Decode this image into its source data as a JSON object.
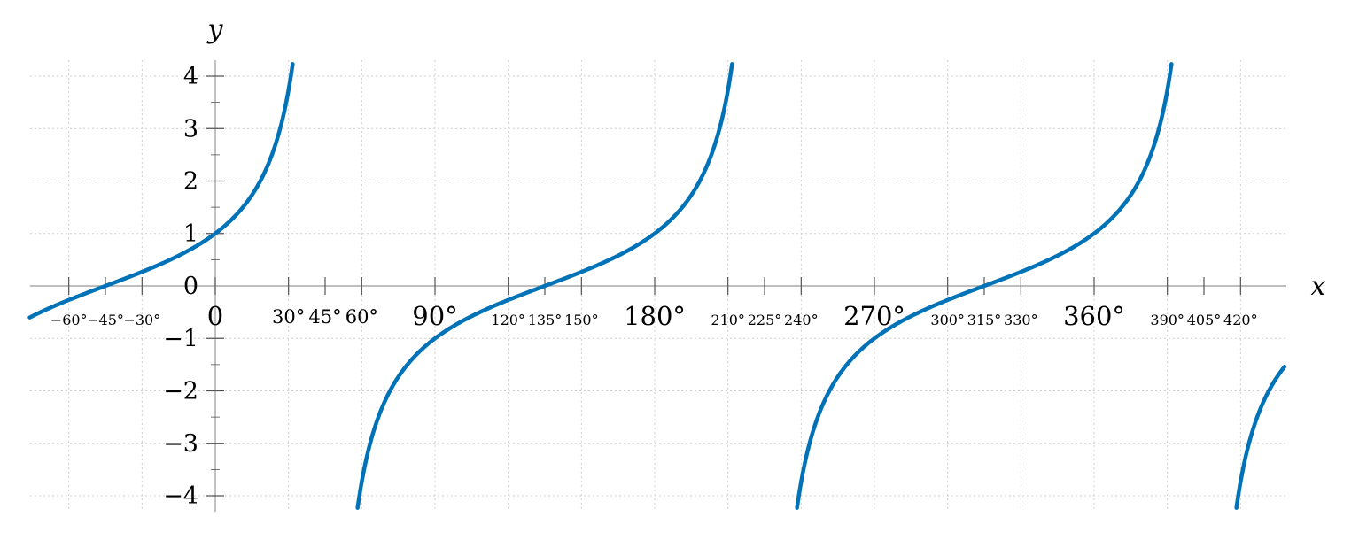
{
  "chart_data": {
    "type": "line",
    "function": "tan(x + 45°)",
    "xlabel": "x",
    "ylabel": "y",
    "xlim": [
      -76,
      438
    ],
    "ylim": [
      -4.3,
      4.3
    ],
    "grid": true,
    "colors": {
      "curve": "#0072B8",
      "axis": "#999999",
      "grid": "#cfcfcf"
    },
    "x_ticks": [
      {
        "value": -60,
        "label": "−60°",
        "size": "small"
      },
      {
        "value": -45,
        "label": "−45°",
        "size": "small"
      },
      {
        "value": -30,
        "label": "−30°",
        "size": "small"
      },
      {
        "value": 0,
        "label": "0",
        "size": "large"
      },
      {
        "value": 30,
        "label": "30°",
        "size": "medium"
      },
      {
        "value": 45,
        "label": "45°",
        "size": "medium"
      },
      {
        "value": 60,
        "label": "60°",
        "size": "medium"
      },
      {
        "value": 90,
        "label": "90°",
        "size": "large"
      },
      {
        "value": 120,
        "label": "120°",
        "size": "small"
      },
      {
        "value": 135,
        "label": "135°",
        "size": "small"
      },
      {
        "value": 150,
        "label": "150°",
        "size": "small"
      },
      {
        "value": 180,
        "label": "180°",
        "size": "large"
      },
      {
        "value": 210,
        "label": "210°",
        "size": "small"
      },
      {
        "value": 225,
        "label": "225°",
        "size": "small"
      },
      {
        "value": 240,
        "label": "240°",
        "size": "small"
      },
      {
        "value": 270,
        "label": "270°",
        "size": "large"
      },
      {
        "value": 300,
        "label": "300°",
        "size": "small"
      },
      {
        "value": 315,
        "label": "315°",
        "size": "small"
      },
      {
        "value": 330,
        "label": "330°",
        "size": "small"
      },
      {
        "value": 360,
        "label": "360°",
        "size": "large"
      },
      {
        "value": 390,
        "label": "390°",
        "size": "small"
      },
      {
        "value": 405,
        "label": "405°",
        "size": "small"
      },
      {
        "value": 420,
        "label": "420°",
        "size": "small"
      }
    ],
    "y_ticks": [
      {
        "value": 4,
        "label": "4"
      },
      {
        "value": 3,
        "label": "3"
      },
      {
        "value": 2,
        "label": "2"
      },
      {
        "value": 1,
        "label": "1"
      },
      {
        "value": -1,
        "label": "−1"
      },
      {
        "value": -2,
        "label": "−2"
      },
      {
        "value": -3,
        "label": "−3"
      },
      {
        "value": -4,
        "label": "−4"
      }
    ],
    "y_zero_label": "0",
    "series": [
      {
        "branches": [
          {
            "x": [
              -76,
              -60,
              -45,
              -30,
              0,
              15,
              25,
              30,
              31.7
            ],
            "y": [
              -0.58,
              -0.27,
              0.0,
              0.27,
              1.0,
              1.73,
              2.75,
              3.73,
              4.3
            ]
          },
          {
            "x": [
              58.3,
              60,
              70,
              80,
              90,
              120,
              135,
              150,
              180,
              190,
              200,
              210,
              211.7
            ],
            "y": [
              -4.3,
              -3.73,
              -2.14,
              -1.43,
              -1.0,
              -0.27,
              0.0,
              0.27,
              1.0,
              1.43,
              2.14,
              3.73,
              4.3
            ]
          },
          {
            "x": [
              238.3,
              240,
              250,
              260,
              270,
              300,
              315,
              330,
              360,
              370,
              380,
              390,
              391.7
            ],
            "y": [
              -4.3,
              -3.73,
              -2.14,
              -1.43,
              -1.0,
              -0.27,
              0.0,
              0.27,
              1.0,
              1.43,
              2.14,
              3.73,
              4.3
            ]
          },
          {
            "x": [
              418.3,
              420,
              430,
              438
            ],
            "y": [
              -4.3,
              -3.73,
              -2.14,
              -1.6
            ]
          }
        ]
      }
    ]
  }
}
